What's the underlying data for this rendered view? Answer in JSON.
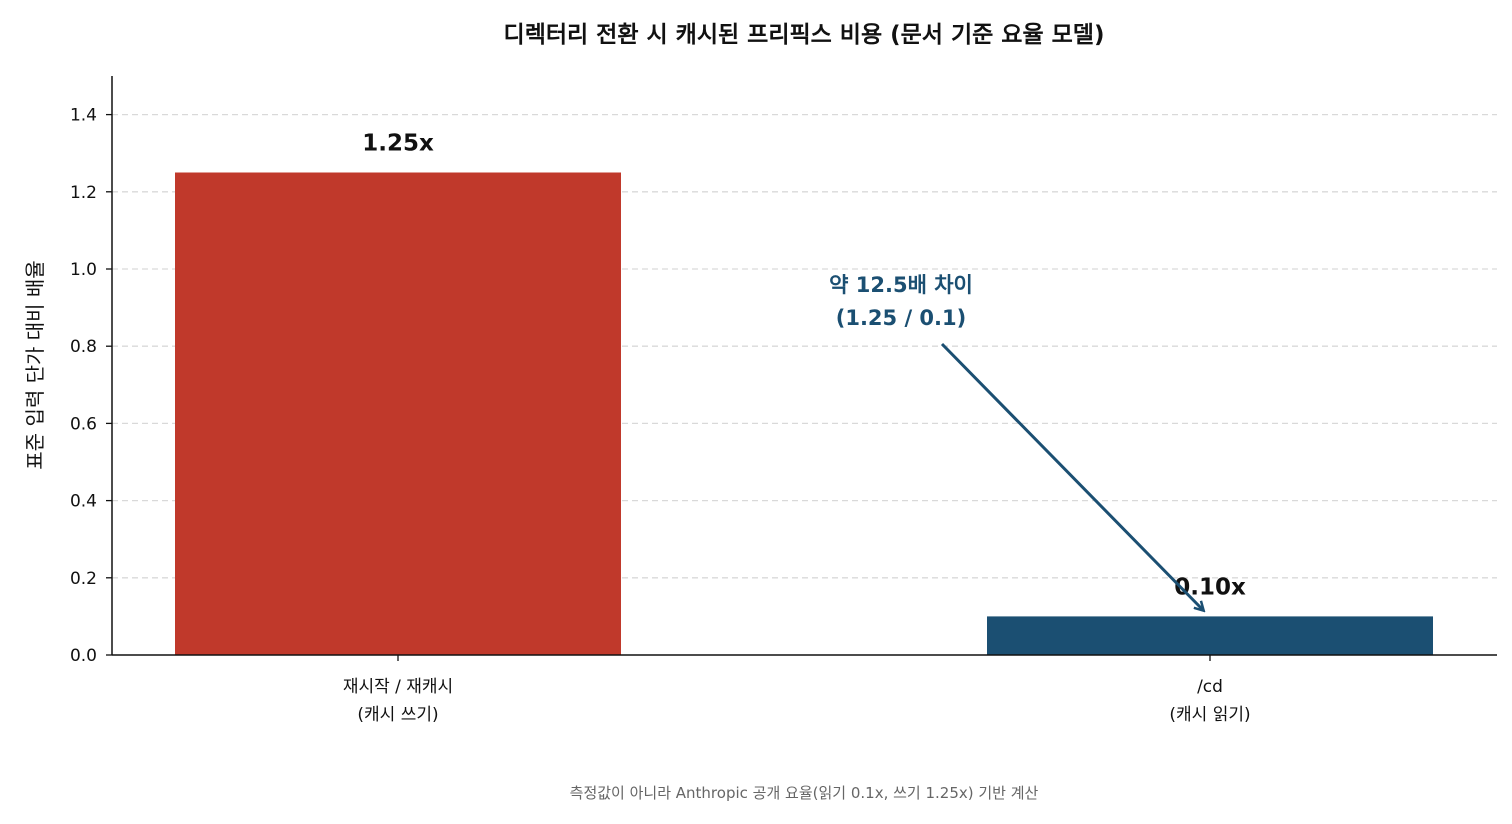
{
  "chart_data": {
    "type": "bar",
    "title": "디렉터리 전환 시 캐시된 프리픽스 비용 (문서 기준 요율 모델)",
    "ylabel": "표준 입력 단가 대비 배율",
    "xlabel": "",
    "categories": [
      [
        "재시작 / 재캐시",
        "(캐시 쓰기)"
      ],
      [
        "/cd",
        "(캐시 읽기)"
      ]
    ],
    "values": [
      1.25,
      0.1
    ],
    "data_labels": [
      "1.25x",
      "0.10x"
    ],
    "colors": [
      "#c0392b",
      "#1b4f72"
    ],
    "ylim": [
      0,
      1.5
    ],
    "yticks": [
      0.0,
      0.2,
      0.4,
      0.6,
      0.8,
      1.0,
      1.2,
      1.4
    ],
    "ytick_labels": [
      "0.0",
      "0.2",
      "0.4",
      "0.6",
      "0.8",
      "1.0",
      "1.2",
      "1.4"
    ],
    "grid": "horizontal dashed",
    "annotation": {
      "lines": [
        "약 12.5배 차이",
        "(1.25 / 0.1)"
      ],
      "color": "#1b4f72",
      "points_to_category": 1
    },
    "footnote": "측정값이 아니라 Anthropic 공개 요율(읽기 0.1x, 쓰기 1.25x) 기반 계산"
  }
}
